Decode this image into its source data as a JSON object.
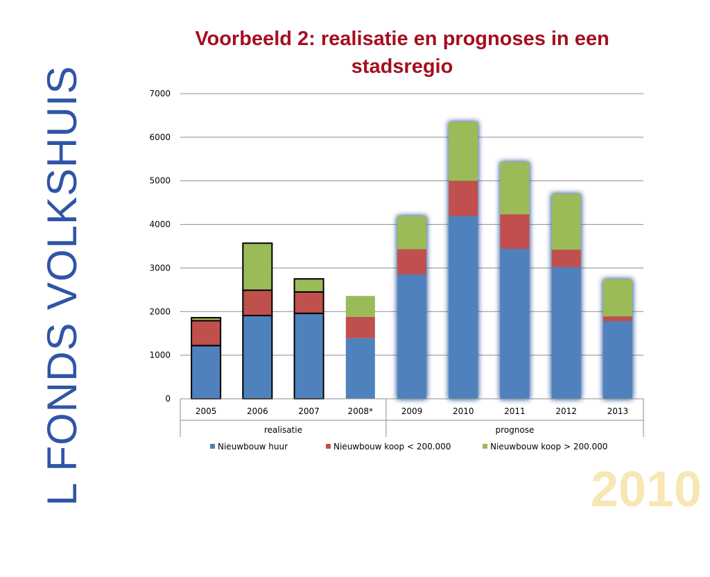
{
  "slide": {
    "side_text": "L FONDS VOLKSHUIS",
    "title": "Voorbeeld 2: realisatie en prognoses in een stadsregio",
    "year_mark": "2010"
  },
  "chart_data": {
    "type": "bar",
    "stacked": true,
    "title": "",
    "xlabel": "",
    "ylabel": "",
    "categories": [
      "2005",
      "2006",
      "2007",
      "2008*",
      "2009",
      "2010",
      "2011",
      "2012",
      "2013"
    ],
    "groups": [
      {
        "label": "realisatie",
        "categories": [
          "2005",
          "2006",
          "2007",
          "2008*"
        ]
      },
      {
        "label": "prognose",
        "categories": [
          "2009",
          "2010",
          "2011",
          "2012",
          "2013"
        ]
      }
    ],
    "series": [
      {
        "name": "Nieuwbouw huur",
        "color": "#4f81bd",
        "values": [
          1220,
          1910,
          1960,
          1390,
          2850,
          4190,
          3440,
          3020,
          1780
        ]
      },
      {
        "name": "Nieuwbouw koop < 200.000",
        "color": "#c0504d",
        "values": [
          570,
          580,
          490,
          490,
          580,
          810,
          790,
          400,
          110
        ]
      },
      {
        "name": "Nieuwbouw koop > 200.000",
        "color": "#9bbb59",
        "values": [
          70,
          1080,
          300,
          480,
          760,
          1350,
          1200,
          1280,
          850
        ]
      }
    ],
    "ylim": [
      0,
      7000
    ],
    "yticks": [
      0,
      1000,
      2000,
      3000,
      4000,
      5000,
      6000,
      7000
    ],
    "grid": true,
    "legend_position": "bottom",
    "outlined_categories": [
      "2005",
      "2006",
      "2007"
    ],
    "glow_categories": [
      "2009",
      "2010",
      "2011",
      "2012",
      "2013"
    ]
  }
}
